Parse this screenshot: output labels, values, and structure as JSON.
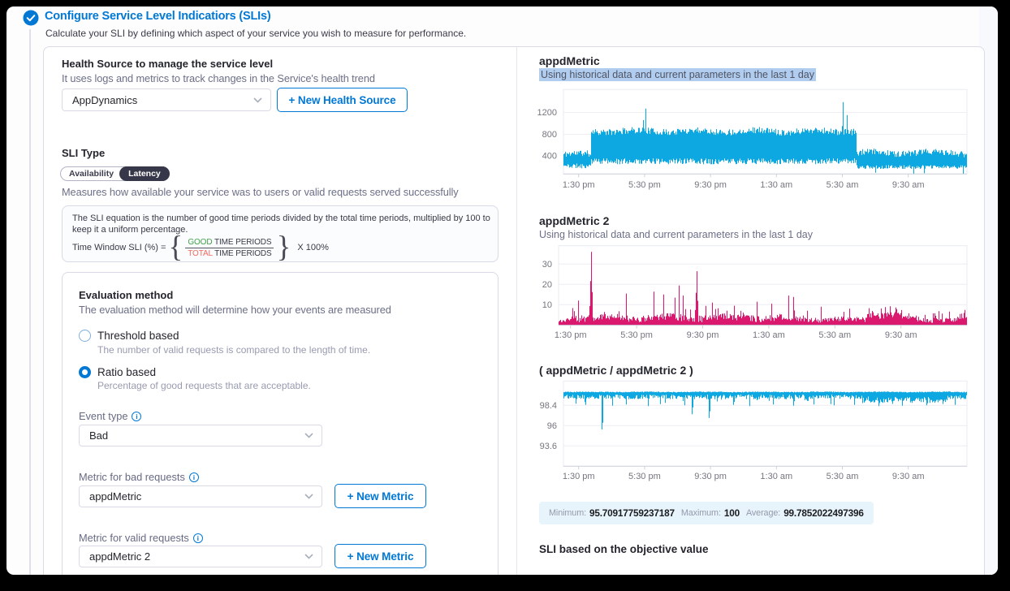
{
  "header": {
    "title": "Configure Service Level Indicatiors (SLIs)",
    "subtitle": "Calculate your SLI by defining which aspect of your service you wish to measure for performance."
  },
  "health_source": {
    "label": "Health Source to manage the service level",
    "description": "It uses logs and metrics to track changes in the Service's health trend",
    "selected": "AppDynamics",
    "new_button": "+ New Health Source"
  },
  "sli_type": {
    "label": "SLI Type",
    "options": [
      "Availability",
      "Latency"
    ],
    "selected": "Latency",
    "description": "Measures how available your service was to users or valid requests served successfully"
  },
  "equation": {
    "text": "The SLI equation is the number of good time periods divided by the total time periods, multiplied by 100 to keep it a uniform percentage.",
    "lhs": "Time Window SLI (%) =",
    "numerator_highlight": "GOOD",
    "numerator_rest": " TIME PERIODS",
    "denominator_highlight": "TOTAL",
    "denominator_rest": " TIME PERIODS",
    "rhs": "X 100%",
    "good_color": "#3fa348",
    "total_color": "#f26a5e"
  },
  "evaluation": {
    "title": "Evaluation method",
    "description": "The evaluation method will determine how your events are measured",
    "options": [
      {
        "label": "Threshold based",
        "description": "The number of valid requests is compared to the length of time.",
        "selected": false
      },
      {
        "label": "Ratio based",
        "description": "Percentage of good requests that are acceptable.",
        "selected": true
      }
    ]
  },
  "event_type": {
    "label": "Event type",
    "value": "Bad"
  },
  "metric_bad": {
    "label": "Metric for bad requests",
    "value": "appdMetric",
    "new_button": "+ New Metric"
  },
  "metric_valid": {
    "label": "Metric for valid requests",
    "value": "appdMetric 2",
    "new_button": "+ New Metric"
  },
  "sli_objective_label": "SLI based on the objective value",
  "stats": {
    "minimum_label": "Minimum:",
    "minimum": "95.70917759237187",
    "maximum_label": "Maximum:",
    "maximum": "100",
    "average_label": "Average:",
    "average": "99.7852022497396"
  },
  "chart_data": [
    {
      "name": "appdMetric",
      "subtitle": "Using historical data and current parameters in the last 1 day",
      "type": "area",
      "color": "#0da7e2",
      "ylim": [
        0,
        1600
      ],
      "y_ticks": [
        {
          "v": 1200,
          "label": "1200"
        },
        {
          "v": 800,
          "label": "800"
        },
        {
          "v": 400,
          "label": "400"
        }
      ],
      "x_ticks": [
        "1:30 pm",
        "5:30 pm",
        "9:30 pm",
        "1:30 am",
        "5:30 am",
        "9:30 am"
      ],
      "segments": [
        {
          "from": 0,
          "to": 0.068,
          "hi": 430,
          "hi_var": 120,
          "lo": 215,
          "lo_var": 90
        },
        {
          "from": 0.068,
          "to": 0.726,
          "hi": 855,
          "hi_var": 120,
          "lo": 300,
          "lo_var": 110
        },
        {
          "from": 0.726,
          "to": 1.0,
          "hi": 455,
          "hi_var": 120,
          "lo": 195,
          "lo_var": 70
        }
      ],
      "spikes_up": [
        {
          "x": 0.198,
          "v": 1060
        },
        {
          "x": 0.2035,
          "v": 1270,
          "big": true
        },
        {
          "x": 0.69,
          "v": 950
        },
        {
          "x": 0.6925,
          "v": 1390,
          "big": true
        },
        {
          "x": 0.7025,
          "v": 1150
        }
      ],
      "spikes_down": [
        {
          "x": 0.773,
          "v": 90
        },
        {
          "x": 0.867,
          "v": 60
        },
        {
          "x": 0.894,
          "v": 80
        },
        {
          "x": 0.99,
          "v": 70
        }
      ]
    },
    {
      "name": "appdMetric 2",
      "subtitle": "Using historical data and current parameters in the last 1 day",
      "type": "area",
      "color": "#d9186e",
      "baseline": 0,
      "ylim": [
        0,
        40
      ],
      "y_ticks": [
        {
          "v": 30,
          "label": "30"
        },
        {
          "v": 20,
          "label": "20"
        },
        {
          "v": 10,
          "label": "10"
        }
      ],
      "x_ticks": [
        "1:30 pm",
        "5:30 pm",
        "9:30 pm",
        "1:30 am",
        "5:30 am",
        "9:30 am"
      ],
      "segments": [
        {
          "from": 0,
          "to": 0.03,
          "hi": 2.4,
          "hi_var": 2.2,
          "lo": 0,
          "lo_var": 0,
          "mi": [
            0.02,
            5,
            7
          ]
        },
        {
          "from": 0.03,
          "to": 0.55,
          "hi": 3.6,
          "hi_var": 3.4,
          "lo": 0,
          "lo_var": 0,
          "mi": [
            0.06,
            6,
            10
          ]
        },
        {
          "from": 0.55,
          "to": 0.75,
          "hi": 2.8,
          "hi_var": 2.4,
          "lo": 0,
          "lo_var": 0,
          "mi": [
            0.04,
            4.5,
            7.5
          ]
        },
        {
          "from": 0.75,
          "to": 0.84,
          "hi": 5.2,
          "hi_var": 3.4,
          "lo": 0,
          "lo_var": 0,
          "mi": [
            0.08,
            6,
            9
          ]
        },
        {
          "from": 0.84,
          "to": 0.93,
          "hi": 2.8,
          "hi_var": 2.6,
          "lo": 0,
          "lo_var": 0,
          "mi": [
            0.05,
            4,
            6
          ]
        },
        {
          "from": 0.93,
          "to": 1.0,
          "hi": 2.6,
          "hi_var": 2.4,
          "lo": 0,
          "lo_var": 0,
          "mi": [
            0.05,
            4.5,
            7
          ]
        }
      ],
      "spikes_up": [
        {
          "x": 0.048,
          "v": 12
        },
        {
          "x": 0.0795,
          "v": 36,
          "big": true
        },
        {
          "x": 0.165,
          "v": 15.5
        },
        {
          "x": 0.233,
          "v": 16.4
        },
        {
          "x": 0.256,
          "v": 15
        },
        {
          "x": 0.285,
          "v": 13.5
        },
        {
          "x": 0.294,
          "v": 19.5
        },
        {
          "x": 0.305,
          "v": 14.5
        },
        {
          "x": 0.338,
          "v": 26.5,
          "big": true
        },
        {
          "x": 0.376,
          "v": 11
        },
        {
          "x": 0.43,
          "v": 9.5
        },
        {
          "x": 0.485,
          "v": 11.5
        },
        {
          "x": 0.521,
          "v": 10.5
        },
        {
          "x": 0.563,
          "v": 14.5
        },
        {
          "x": 0.574,
          "v": 13.8
        },
        {
          "x": 0.642,
          "v": 9
        },
        {
          "x": 0.712,
          "v": 8
        },
        {
          "x": 0.8,
          "v": 8.8
        },
        {
          "x": 0.812,
          "v": 9.2
        },
        {
          "x": 0.825,
          "v": 8.6
        },
        {
          "x": 0.994,
          "v": 7.4
        }
      ],
      "spikes_down": []
    },
    {
      "name": "( appdMetric / appdMetric 2 )",
      "type": "area",
      "color": "#0da7e2",
      "ylim": [
        90.7,
        100.8
      ],
      "y_ticks": [
        {
          "v": 98.4,
          "label": "98.4"
        },
        {
          "v": 96,
          "label": "96"
        },
        {
          "v": 93.6,
          "label": "93.6"
        }
      ],
      "x_ticks": [
        "1:30 pm",
        "5:30 pm",
        "9:30 pm",
        "1:30 am",
        "5:30 am",
        "9:30 am"
      ],
      "segments": [
        {
          "from": 0,
          "to": 0.74,
          "hi": 99.98,
          "hi_var": 0.1,
          "lo": 99.4,
          "lo_var": 0.55,
          "md": [
            0.05,
            0.6
          ]
        },
        {
          "from": 0.74,
          "to": 0.95,
          "hi": 99.98,
          "hi_var": 0.1,
          "lo": 99.05,
          "lo_var": 0.8,
          "md": [
            0.12,
            0.5
          ]
        },
        {
          "from": 0.95,
          "to": 1.0,
          "hi": 99.98,
          "hi_var": 0.1,
          "lo": 99.35,
          "lo_var": 0.5,
          "md": [
            0.05,
            0.4
          ]
        }
      ],
      "spikes_up": [],
      "spikes_down": [
        {
          "x": 0.03,
          "v": 98.6
        },
        {
          "x": 0.055,
          "v": 98.45
        },
        {
          "x": 0.0946,
          "v": 95.55,
          "big": true
        },
        {
          "x": 0.12,
          "v": 98.35
        },
        {
          "x": 0.155,
          "v": 98.5
        },
        {
          "x": 0.21,
          "v": 98.3
        },
        {
          "x": 0.24,
          "v": 98.55
        },
        {
          "x": 0.3,
          "v": 98.4
        },
        {
          "x": 0.318,
          "v": 97.35,
          "big": true
        },
        {
          "x": 0.36,
          "v": 96.9,
          "big": true
        },
        {
          "x": 0.42,
          "v": 98.45
        },
        {
          "x": 0.46,
          "v": 98.3
        },
        {
          "x": 0.52,
          "v": 98.5
        },
        {
          "x": 0.57,
          "v": 98.35
        },
        {
          "x": 0.62,
          "v": 98.5
        },
        {
          "x": 0.67,
          "v": 98.4
        },
        {
          "x": 0.72,
          "v": 98.45
        },
        {
          "x": 0.78,
          "v": 98.3
        },
        {
          "x": 0.84,
          "v": 98.35
        },
        {
          "x": 0.9,
          "v": 98.4
        },
        {
          "x": 0.97,
          "v": 98.45
        }
      ]
    }
  ]
}
